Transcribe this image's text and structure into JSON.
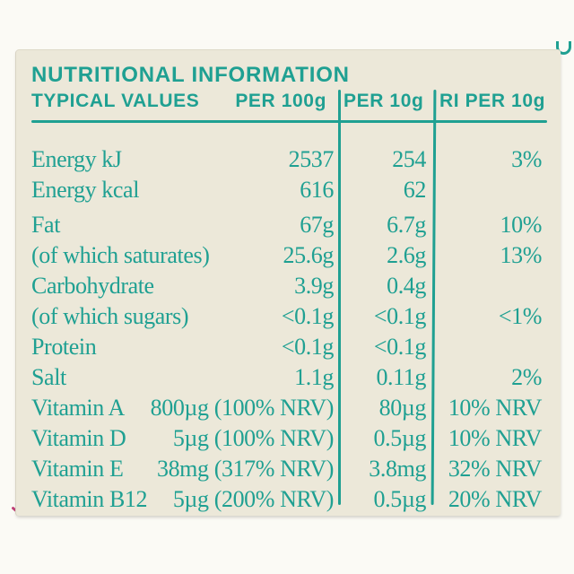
{
  "label": {
    "title": "NUTRITIONAL INFORMATION",
    "columns": {
      "typical_values": "TYPICAL VALUES",
      "per_100g": "PER 100g",
      "per_10g": "PER 10g",
      "ri_per_10g": "RI PER 10g"
    },
    "rows": [
      {
        "label": "Energy kJ",
        "per100": "2537",
        "per10": "254",
        "ri": "3%",
        "gap_after": false
      },
      {
        "label": "Energy kcal",
        "per100": "616",
        "per10": "62",
        "ri": "",
        "gap_after": true
      },
      {
        "label": "Fat",
        "per100": "67g",
        "per10": "6.7g",
        "ri": "10%",
        "gap_after": false
      },
      {
        "label": "(of which saturates)",
        "per100": "25.6g",
        "per10": "2.6g",
        "ri": "13%",
        "gap_after": false
      },
      {
        "label": "Carbohydrate",
        "per100": "3.9g",
        "per10": "0.4g",
        "ri": "",
        "gap_after": false
      },
      {
        "label": "(of which sugars)",
        "per100": "<0.1g",
        "per10": "<0.1g",
        "ri": "<1%",
        "gap_after": false
      },
      {
        "label": "Protein",
        "per100": "<0.1g",
        "per10": "<0.1g",
        "ri": "",
        "gap_after": false
      },
      {
        "label": "Salt",
        "per100": "1.1g",
        "per10": "0.11g",
        "ri": "2%",
        "gap_after": false
      },
      {
        "label": "Vitamin A",
        "per100": "800µg (100% NRV)",
        "per10": "80µg",
        "ri": "10% NRV",
        "gap_after": false
      },
      {
        "label": "Vitamin D",
        "per100": "5µg (100% NRV)",
        "per10": "0.5µg",
        "ri": "10% NRV",
        "gap_after": false
      },
      {
        "label": "Vitamin E",
        "per100": "38mg (317% NRV)",
        "per10": "3.8mg",
        "ri": "32% NRV",
        "gap_after": false
      },
      {
        "label": "Vitamin B12",
        "per100": "5µg (200% NRV)",
        "per10": "0.5µg",
        "ri": "20% NRV",
        "gap_after": false
      }
    ],
    "colors": {
      "accent_teal": "#1fa092",
      "panel_background": "#ece8d9",
      "page_background": "#fbfaf5",
      "corner_mark_pink": "#c04077"
    }
  }
}
